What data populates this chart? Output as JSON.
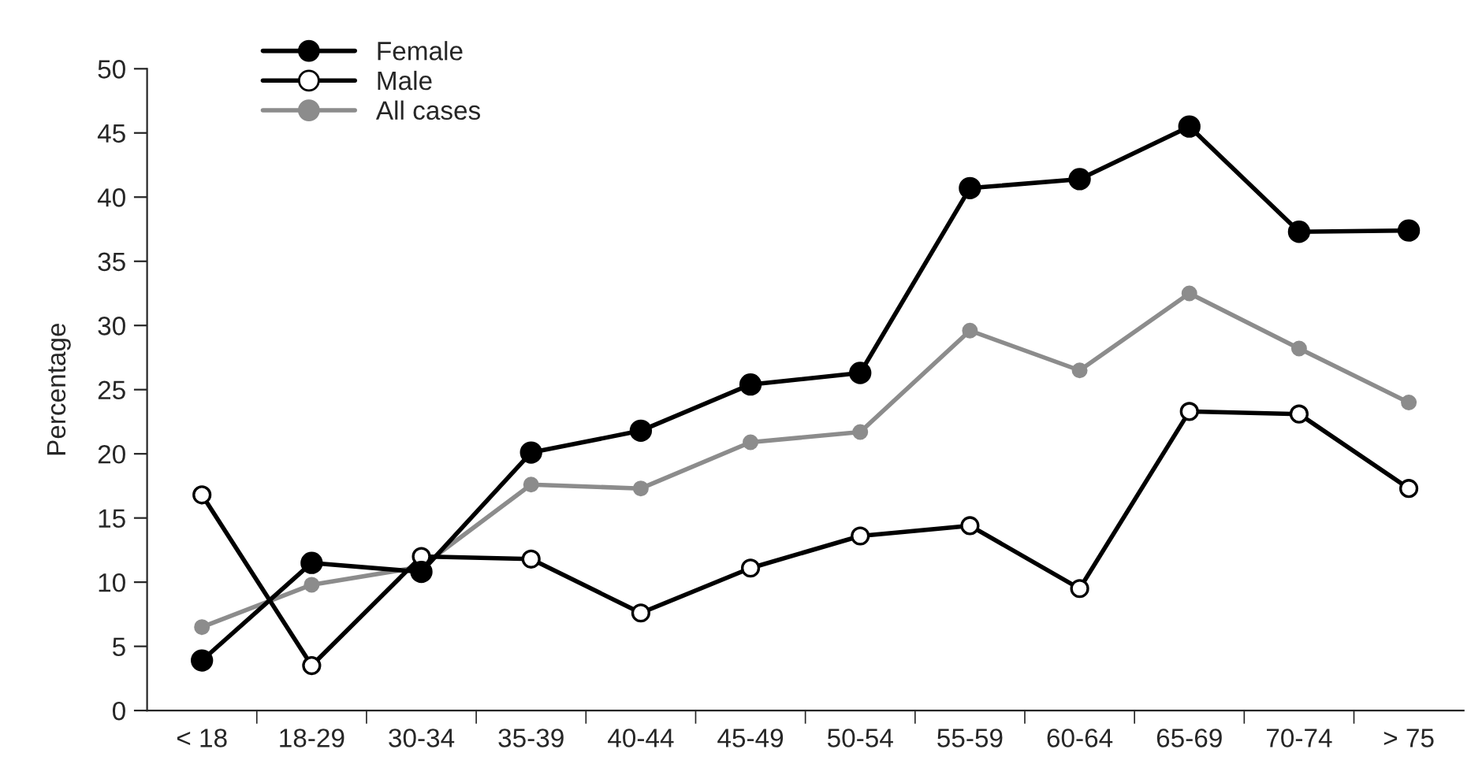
{
  "chart_data": {
    "type": "line",
    "ylabel": "Percentage",
    "categories": [
      "< 18",
      "18-29",
      "30-34",
      "35-39",
      "40-44",
      "45-49",
      "50-54",
      "55-59",
      "60-64",
      "65-69",
      "70-74",
      "> 75"
    ],
    "series": [
      {
        "name": "Female",
        "color": "#000000",
        "values": [
          3.9,
          11.5,
          10.8,
          20.1,
          21.8,
          25.4,
          26.3,
          40.7,
          41.4,
          45.5,
          37.3,
          37.4
        ]
      },
      {
        "name": "Male",
        "color": "#000000",
        "marker": "open circle",
        "values": [
          16.8,
          3.5,
          12.0,
          11.8,
          7.6,
          11.1,
          13.6,
          14.4,
          9.5,
          23.3,
          23.1,
          17.3
        ]
      },
      {
        "name": "All cases",
        "color": "#8c8c8c",
        "values": [
          6.5,
          9.8,
          11.2,
          17.6,
          17.3,
          20.9,
          21.7,
          29.6,
          26.5,
          32.5,
          28.2,
          24.0
        ]
      }
    ],
    "ylim": [
      0,
      50
    ],
    "yticks": [
      0,
      5,
      10,
      15,
      20,
      25,
      30,
      35,
      40,
      45,
      50
    ],
    "grid": false,
    "legend": "top left",
    "marker": "circle",
    "line_style": "solid"
  }
}
